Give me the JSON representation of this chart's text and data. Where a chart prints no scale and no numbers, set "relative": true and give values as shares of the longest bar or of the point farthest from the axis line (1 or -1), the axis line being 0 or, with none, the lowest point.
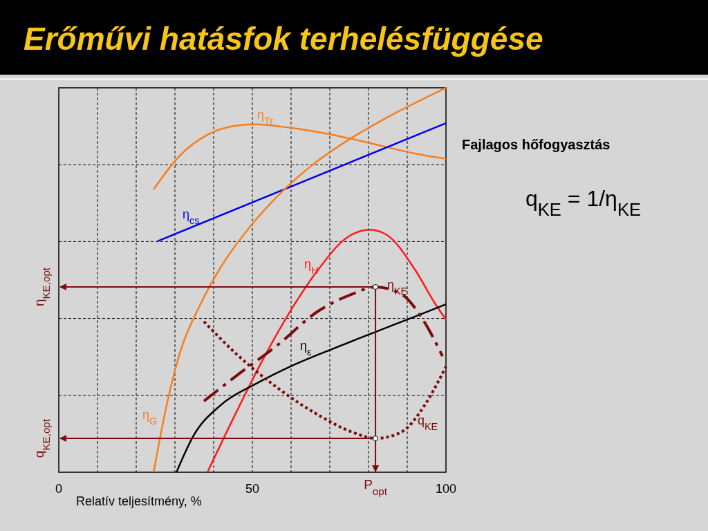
{
  "chart_data": {
    "type": "line",
    "title": "Erőművi hatásfok terhelésfüggése",
    "xlabel": "Relatív teljesítmény, %",
    "relative": true,
    "xlim": [
      0,
      100
    ],
    "xticks": [
      0,
      {
        "value": 10,
        "label": null
      },
      {
        "value": 20,
        "label": null
      },
      {
        "value": 30,
        "label": null
      },
      {
        "value": 40,
        "label": null
      },
      50,
      {
        "value": 60,
        "label": null
      },
      {
        "value": 70,
        "label": null
      },
      {
        "value": 80,
        "label": null
      },
      {
        "value": 90,
        "label": null
      },
      100
    ],
    "grid": true,
    "marker": "none",
    "series": [
      {
        "name": "η$_{Tr}$",
        "color": "#f57f20",
        "x": [
          24.5,
          31.3,
          38.4,
          45.5,
          50.7,
          59.8,
          70.5,
          81.3,
          92,
          100
        ],
        "values": [
          0.736,
          0.824,
          0.878,
          0.901,
          0.905,
          0.896,
          0.878,
          0.854,
          0.829,
          0.815
        ]
      },
      {
        "name": "η$_{cs}$",
        "color": "#0000ee",
        "x": [
          25.5,
          100
        ],
        "values": [
          0.601,
          0.908
        ]
      },
      {
        "name": "η$_{G}$",
        "color": "#f57f20",
        "x": [
          24.5,
          27.7,
          31.3,
          36.6,
          42,
          49.1,
          56.3,
          65.2,
          74.1,
          84.8,
          100
        ],
        "values": [
          0,
          0.167,
          0.311,
          0.437,
          0.536,
          0.635,
          0.716,
          0.797,
          0.86,
          0.923,
          1
        ]
      },
      {
        "name": "η$_{H}$",
        "color": "#ff1a1a",
        "x": [
          38.4,
          45.5,
          52.7,
          59.8,
          67,
          74.1,
          80.4,
          84.8,
          92,
          97.3,
          100
        ],
        "values": [
          0,
          0.149,
          0.293,
          0.419,
          0.527,
          0.608,
          0.631,
          0.617,
          0.527,
          0.437,
          0.397
        ]
      },
      {
        "name": "η$_{ε}$",
        "color": "#000000",
        "x": [
          30.4,
          34.8,
          42,
          50.9,
          59.8,
          70.5,
          81.8,
          92,
          100
        ],
        "values": [
          0,
          0.095,
          0.176,
          0.23,
          0.275,
          0.32,
          0.365,
          0.405,
          0.437
        ]
      },
      {
        "name": "η$_{KE}$",
        "color": "#7b0c0c",
        "line_style": "dashed",
        "x": [
          37.5,
          45.5,
          56.3,
          67,
          75.9,
          81.8,
          88.4,
          93.8,
          99.1
        ],
        "values": [
          0.185,
          0.248,
          0.329,
          0.419,
          0.464,
          0.482,
          0.464,
          0.401,
          0.302
        ]
      },
      {
        "name": "q$_{KE}$",
        "color": "#7b0c0c",
        "line_style": "dotted",
        "x": [
          37.5,
          45.5,
          56.3,
          67,
          75.9,
          81.8,
          88.4,
          94.6,
          100
        ],
        "values": [
          0.392,
          0.311,
          0.221,
          0.149,
          0.104,
          0.088,
          0.104,
          0.176,
          0.275
        ]
      }
    ],
    "ref_lines": [
      {
        "axis": "y",
        "value": 0.482,
        "label": "η$_{KE,opt}$",
        "color": "#7b0c0c"
      },
      {
        "axis": "y",
        "value": 0.088,
        "label": "q$_{KE,opt}$",
        "color": "#7b0c0c"
      },
      {
        "axis": "x",
        "value": 81.8,
        "label": "P$_{opt}$",
        "color": "#7b0c0c"
      }
    ],
    "annotations": [
      "Fajlagos hőfogyasztás",
      "q$_{KE}$ = 1/η$_{KE}$"
    ]
  }
}
